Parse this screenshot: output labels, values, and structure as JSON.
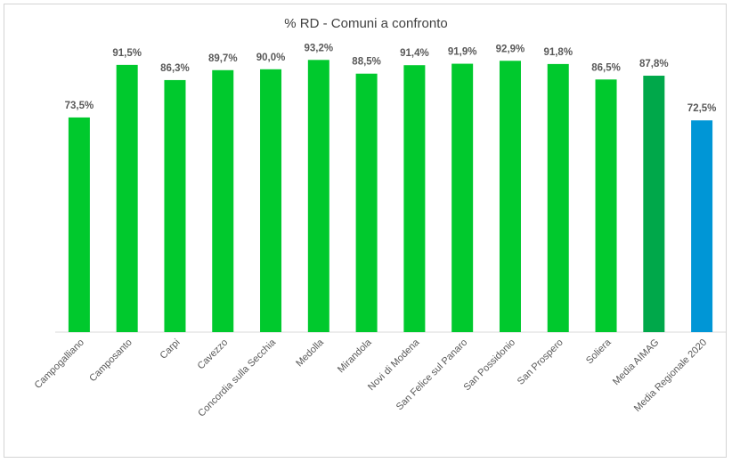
{
  "chart_data": {
    "type": "bar",
    "title": "% RD - Comuni a confronto",
    "xlabel": "",
    "ylabel": "",
    "ylim": [
      0,
      100
    ],
    "grid": false,
    "legend": "none",
    "categories": [
      "Campogalliano",
      "Camposanto",
      "Carpi",
      "Cavezzo",
      "Concordia sulla Secchia",
      "Medolla",
      "Mirandola",
      "Novi di Modena",
      "San Felice sul Panaro",
      "San Possidonio",
      "San Prospero",
      "Soliera",
      "Media AIMAG",
      "Media Regionale 2020"
    ],
    "values": [
      73.5,
      91.5,
      86.3,
      89.7,
      90.0,
      93.2,
      88.5,
      91.4,
      91.9,
      92.9,
      91.8,
      86.5,
      87.8,
      72.5
    ],
    "value_labels": [
      "73,5%",
      "91,5%",
      "86,3%",
      "89,7%",
      "90,0%",
      "93,2%",
      "88,5%",
      "91,4%",
      "91,9%",
      "92,9%",
      "91,8%",
      "86,5%",
      "87,8%",
      "72,5%"
    ],
    "colors": [
      "#00c92d",
      "#00c92d",
      "#00c92d",
      "#00c92d",
      "#00c92d",
      "#00c92d",
      "#00c92d",
      "#00c92d",
      "#00c92d",
      "#00c92d",
      "#00c92d",
      "#00c92d",
      "#00a84a",
      "#0096d6"
    ]
  }
}
